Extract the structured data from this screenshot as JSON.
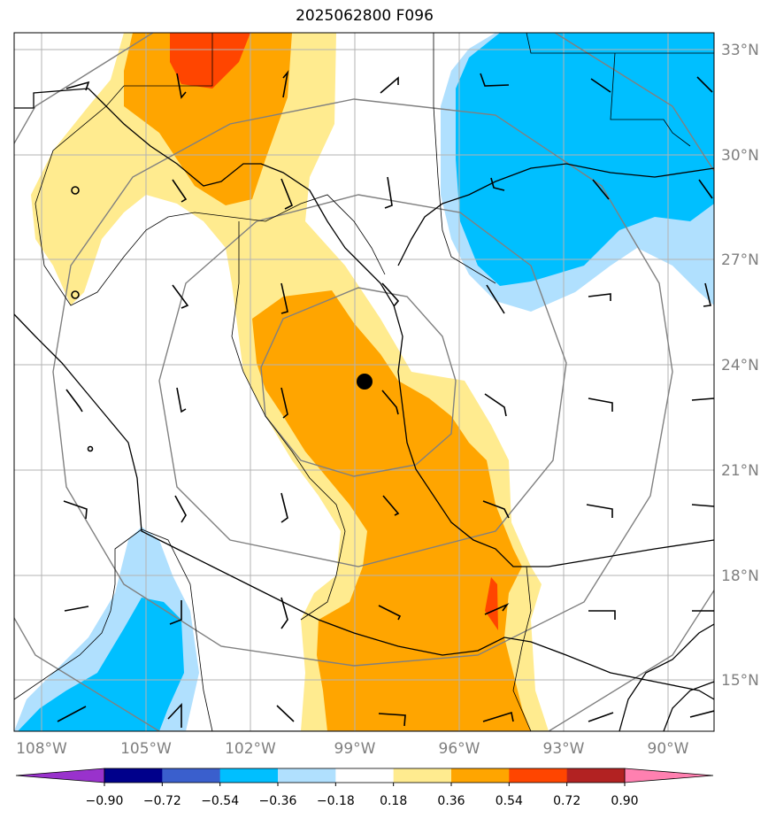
{
  "title": "2025062800 F096",
  "lon_labels": [
    "108°W",
    "105°W",
    "102°W",
    "99°W",
    "96°W",
    "93°W",
    "90°W"
  ],
  "lat_labels": [
    "33°N",
    "30°N",
    "27°N",
    "24°N",
    "21°N",
    "18°N",
    "15°N"
  ],
  "lon_values": [
    -108,
    -105,
    -102,
    -99,
    -96,
    -93,
    -90
  ],
  "lat_values": [
    33,
    30,
    27,
    24,
    21,
    18,
    15
  ],
  "extent": {
    "lon_min": -108.8,
    "lon_max": -89.2,
    "lat_min": 13.5,
    "lat_max": 33.5
  },
  "center_marker": {
    "lon": -98.8,
    "lat": 23.5
  },
  "colorbar": {
    "ticks": [
      "−0.90",
      "−0.72",
      "−0.54",
      "−0.36",
      "−0.18",
      "0.18",
      "0.36",
      "0.54",
      "0.72",
      "0.90"
    ],
    "colors": [
      "#9932cc",
      "#00008b",
      "#3a5fcd",
      "#00bfff",
      "#b0e0fe",
      "#ffffff",
      "#ffeb8f",
      "#ffa500",
      "#ff4500",
      "#b22222",
      "#ff80b0"
    ],
    "extend_min_color": "#9932cc",
    "extend_max_color": "#ff80b0"
  }
}
